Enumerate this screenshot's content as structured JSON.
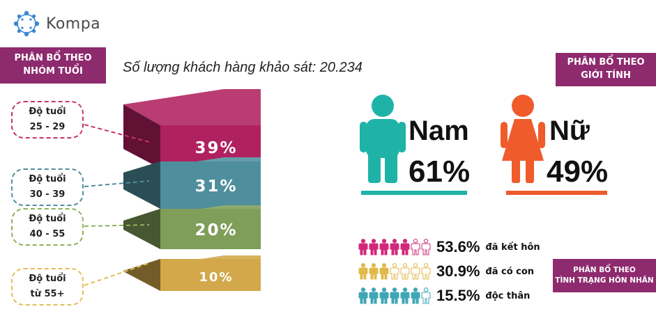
{
  "brand": {
    "name": "Kompa",
    "logo_color": "#3a86d8"
  },
  "survey": {
    "text": "Số lượng khách hàng khảo sát: 20.234"
  },
  "age_section": {
    "title_line1": "PHÂN BỔ THEO",
    "title_line2": "NHÓM TUỔI",
    "groups": [
      {
        "line1": "Độ tuổi",
        "line2": "25 - 29",
        "percent": 39,
        "label": "39%",
        "color": "#b0215f"
      },
      {
        "line1": "Độ tuổi",
        "line2": "30 - 39",
        "percent": 31,
        "label": "31%",
        "color": "#4f8e9c"
      },
      {
        "line1": "Độ tuổi",
        "line2": "40 - 55",
        "percent": 20,
        "label": "20%",
        "color": "#7f9e5a"
      },
      {
        "line1": "Độ tuổi",
        "line2": "từ 55+",
        "percent": 10,
        "label": "10%",
        "color": "#d2a84a"
      }
    ]
  },
  "gender_section": {
    "title_line1": "PHÂN BỔ THEO",
    "title_line2": "GIỚI TÍNH",
    "male": {
      "label": "Nam",
      "percent": 61,
      "value": "61%",
      "color": "#1fb3a8",
      "icon": "male-person-icon"
    },
    "female": {
      "label": "Nữ",
      "percent": 49,
      "value": "49%",
      "color": "#ef5b2b",
      "icon": "female-person-icon"
    }
  },
  "marital_section": {
    "title_line1": "PHÂN BỔ THEO",
    "title_line2": "TÌNH TRẠNG HÔN NHÂN",
    "rows": [
      {
        "value": "53.6%",
        "percent": 53.6,
        "label": "đã kết hôn",
        "filled": 5,
        "total": 7,
        "color": "#d1287a"
      },
      {
        "value": "30.9%",
        "percent": 30.9,
        "label": "đã có con",
        "filled": 3,
        "total": 7,
        "color": "#e0b94a"
      },
      {
        "value": "15.5%",
        "percent": 15.5,
        "label": "độc thân",
        "filled": 6,
        "total": 7,
        "color": "#3fa6b6"
      }
    ]
  }
}
